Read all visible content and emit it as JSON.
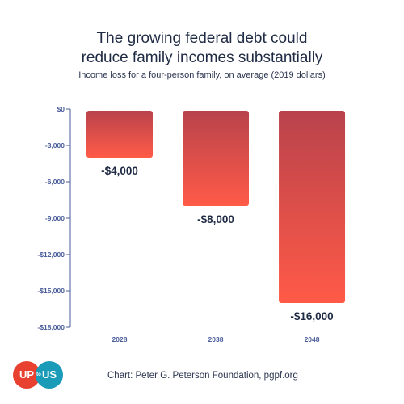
{
  "chart_data": {
    "type": "bar",
    "title": "The growing federal debt could reduce family incomes substantially",
    "title_lines": [
      "The growing federal debt could",
      "reduce family incomes substantially"
    ],
    "subtitle": "Income loss for a four-person family, on average (2019 dollars)",
    "categories": [
      "2028",
      "2038",
      "2048"
    ],
    "values": [
      -4000,
      -8000,
      -16000
    ],
    "value_labels": [
      "-$4,000",
      "-$8,000",
      "-$16,000"
    ],
    "ylim": [
      -18000,
      0
    ],
    "yticks": [
      0,
      -3000,
      -6000,
      -9000,
      -12000,
      -15000,
      -18000
    ],
    "ytick_labels": [
      "$0",
      "-3,000",
      "-6,000",
      "-9,000",
      "-$12,000",
      "-$15,000",
      "-$18,000"
    ],
    "xlabel": "",
    "ylabel": "",
    "grid": false,
    "colors": {
      "bar_top": "#b9434c",
      "bar_bottom": "#ff5a47",
      "axis": "#4a5d9a"
    }
  },
  "logo": {
    "left": "UP",
    "middle": "to",
    "right": "US"
  },
  "source": "Chart: Peter G. Peterson Foundation, pgpf.org"
}
